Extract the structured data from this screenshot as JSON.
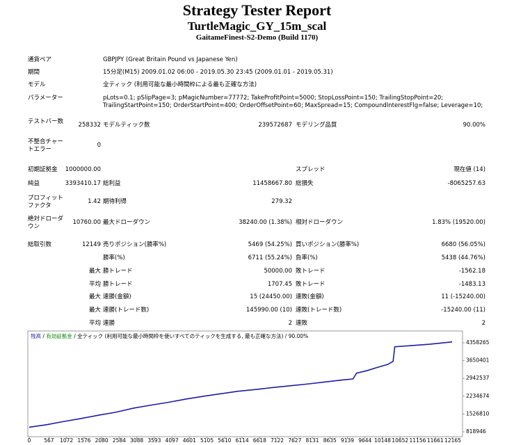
{
  "header": {
    "title": "Strategy Tester Report",
    "subtitle": "TurtleMagic_GY_15m_scal",
    "broker": "GaitameFinest-S2-Demo (Build 1170)"
  },
  "summary": [
    {
      "label": "通貨ペア",
      "value": "GBPJPY (Great Britain Pound vs Japanese Yen)"
    },
    {
      "label": "期間",
      "value": "15分足(M15) 2009.01.02 06:00 - 2019.05.30 23:45 (2009.01.01 - 2019.05.31)"
    },
    {
      "label": "モデル",
      "value": "全ティック (利用可能な最小時間枠による最も正確な方法)"
    },
    {
      "label": "パラメーター",
      "value": "pLots=0.1; pSlipPage=3; pMagicNumber=77772; TakeProfitPoint=5000; StopLossPoint=150; TrailingStopPoint=20; TrailingStartPoint=150; OrderStartPoint=400; OrderOffsetPoint=60; MaxSpread=15; CompoundInterestFlg=false; Leverage=10;"
    }
  ],
  "stats": [
    [
      "テストバー数",
      "258332",
      "モデルティック数",
      "239572687",
      "モデリング品質",
      "90.00%"
    ],
    [
      "不整合チャートエラー",
      "0",
      null,
      null,
      null,
      null
    ],
    [
      "初期証拠金",
      "1000000.00",
      null,
      null,
      "スプレッド",
      "現在値 (14)"
    ],
    [
      "純益",
      "3393410.17",
      "総利益",
      "11458667.80",
      "総損失",
      "-8065257.63"
    ],
    [
      "プロフィットファクタ",
      "1.42",
      "期待利得",
      "279.32",
      null,
      null
    ],
    [
      "絶対ドローダウン",
      "10760.00",
      "最大ドローダウン",
      "38240.00 (1.38%)",
      "相対ドローダウン",
      "1.83% (19520.00)"
    ],
    [
      "総取引数",
      "12149",
      "売りポジション(勝率%)",
      "5469 (54.25%)",
      "買いポジション(勝率%)",
      "6680 (56.05%)"
    ],
    [
      null,
      null,
      "勝率(%)",
      "6711 (55.24%)",
      "負率(%)",
      "5438 (44.76%)"
    ],
    [
      null,
      "最大",
      "勝トレード",
      "50000.00",
      "敗トレード",
      "-1562.18"
    ],
    [
      null,
      "平均",
      "勝トレード",
      "1707.45",
      "敗トレード",
      "-1483.13"
    ],
    [
      null,
      "最大",
      "連勝(金額)",
      "15 (24450.00)",
      "連敗(金額)",
      "11 (-15240.00)"
    ],
    [
      null,
      "最大",
      "連勝(トレード数)",
      "145990.00 (10)",
      "連敗(トレード数)",
      "-15240.00 (11)"
    ],
    [
      null,
      "平均",
      "連勝",
      "2",
      "連敗",
      "2"
    ]
  ],
  "chart_data": {
    "type": "line",
    "legend_separator": "/",
    "legend_note": "全ティック (利用可能な最小時間枠を使いすべてのティックを生成する, 最も正確な方法) / 90.00%",
    "x": [
      0,
      500,
      1000,
      1500,
      2000,
      2500,
      3000,
      3500,
      4000,
      4500,
      5000,
      5500,
      6000,
      6500,
      7000,
      7500,
      8000,
      8500,
      9000,
      9300,
      9400,
      9700,
      10000,
      10300,
      10450,
      10500,
      11000,
      11500,
      12149
    ],
    "series": [
      {
        "name": "残高",
        "color": "#1c1ca8",
        "values": [
          1000000,
          1100000,
          1230000,
          1350000,
          1480000,
          1600000,
          1760000,
          1880000,
          1990000,
          2120000,
          2230000,
          2330000,
          2430000,
          2500000,
          2580000,
          2650000,
          2720000,
          2800000,
          2880000,
          2920000,
          3150000,
          3250000,
          3380000,
          3500000,
          3620000,
          4200000,
          4250000,
          4300000,
          4393410
        ]
      },
      {
        "name": "有効証拠金",
        "color": "#0a8a0a"
      }
    ],
    "xlim": [
      0,
      12445
    ],
    "ylim": [
      708000,
      4773000
    ],
    "xticks": [
      0,
      567,
      1072,
      1576,
      2080,
      2584,
      3088,
      3593,
      4097,
      4601,
      5105,
      5610,
      6114,
      6618,
      7122,
      7627,
      8131,
      8635,
      9139,
      9644,
      10148,
      10652,
      11156,
      11661,
      12165
    ],
    "yticks": [
      818946,
      1526810,
      2234674,
      2942537,
      3650401,
      4358265
    ]
  }
}
